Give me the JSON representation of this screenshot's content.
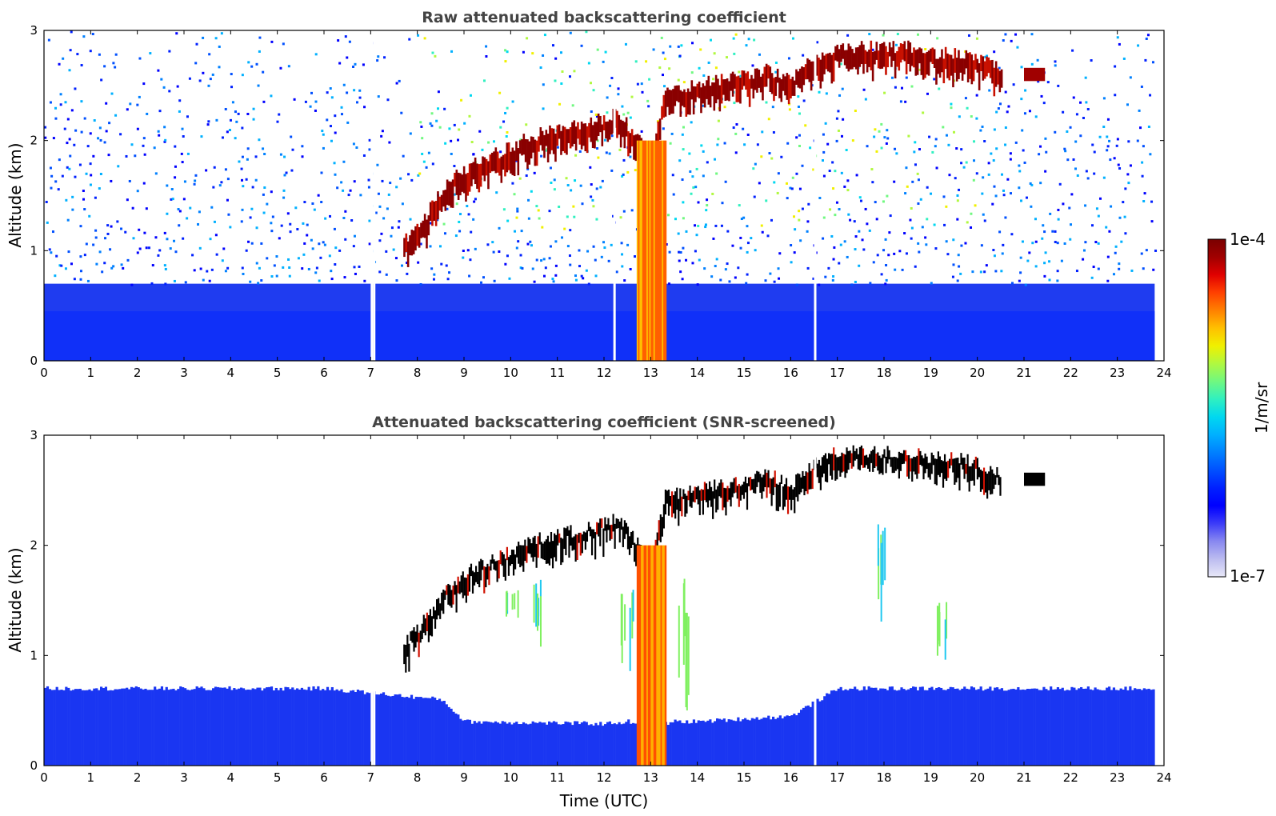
{
  "chart_data": [
    {
      "type": "heatmap",
      "title": "Raw attenuated backscattering coefficient",
      "xlabel": "",
      "ylabel": "Altitude (km)",
      "xlim": [
        0,
        24
      ],
      "ylim": [
        0,
        3
      ],
      "xticks": [
        "0",
        "1",
        "2",
        "3",
        "4",
        "5",
        "6",
        "7",
        "8",
        "9",
        "10",
        "11",
        "12",
        "13",
        "14",
        "15",
        "16",
        "17",
        "18",
        "19",
        "20",
        "21",
        "22",
        "23",
        "24"
      ],
      "yticks": [
        "0",
        "1",
        "2",
        "3"
      ],
      "cloud_top_km": {
        "time_utc": [
          7.7,
          8.2,
          8.6,
          9.0,
          9.5,
          10.0,
          10.5,
          11.0,
          11.5,
          12.0,
          12.3,
          13.0,
          13.3,
          13.8,
          14.5,
          15.0,
          15.5,
          16.0,
          16.5,
          17.0,
          17.5,
          18.0,
          18.5,
          19.0,
          19.5,
          20.0,
          20.5
        ],
        "altitude": [
          1.1,
          1.35,
          1.6,
          1.75,
          1.85,
          1.95,
          2.05,
          2.1,
          2.15,
          2.2,
          2.25,
          1.85,
          2.45,
          2.5,
          2.55,
          2.6,
          2.65,
          2.55,
          2.75,
          2.85,
          2.85,
          2.85,
          2.85,
          2.8,
          2.8,
          2.75,
          2.65
        ]
      },
      "isolated_cloud": {
        "time_utc": [
          21.0,
          21.45
        ],
        "altitude_km": 2.6
      },
      "boundary_layer_top_km": 0.7,
      "data_ends_utc": 23.8
    },
    {
      "type": "heatmap",
      "title": "Attenuated backscattering coefficient (SNR-screened)",
      "xlabel": "Time (UTC)",
      "ylabel": "Altitude (km)",
      "xlim": [
        0,
        24
      ],
      "ylim": [
        0,
        3
      ],
      "xticks": [
        "0",
        "1",
        "2",
        "3",
        "4",
        "5",
        "6",
        "7",
        "8",
        "9",
        "10",
        "11",
        "12",
        "13",
        "14",
        "15",
        "16",
        "17",
        "18",
        "19",
        "20",
        "21",
        "22",
        "23",
        "24"
      ],
      "yticks": [
        "0",
        "1",
        "2",
        "3"
      ],
      "screened_layer_top_km": {
        "time_utc": [
          0,
          6,
          8.5,
          9.0,
          12.0,
          12.5,
          13.0,
          13.5,
          14.0,
          16.0,
          17.0,
          23.8
        ],
        "altitude": [
          0.7,
          0.7,
          0.6,
          0.4,
          0.38,
          0.4,
          0.35,
          0.4,
          0.4,
          0.45,
          0.7,
          0.7
        ]
      }
    }
  ],
  "colorbar": {
    "label": "1/m/sr",
    "max_label": "1e-4",
    "min_label": "1e-7",
    "range": [
      1e-07,
      0.0001
    ],
    "scale": "log",
    "colors": [
      "#e8e8f8",
      "#bcbcf0",
      "#8888f0",
      "#3c3cf8",
      "#0000ff",
      "#0020ff",
      "#0050ff",
      "#0080ff",
      "#00b0ff",
      "#00d8f0",
      "#30f0c0",
      "#70f880",
      "#b0f840",
      "#f0f000",
      "#ffc000",
      "#ff8000",
      "#ff4000",
      "#e00000",
      "#a00000",
      "#7a0000"
    ]
  }
}
